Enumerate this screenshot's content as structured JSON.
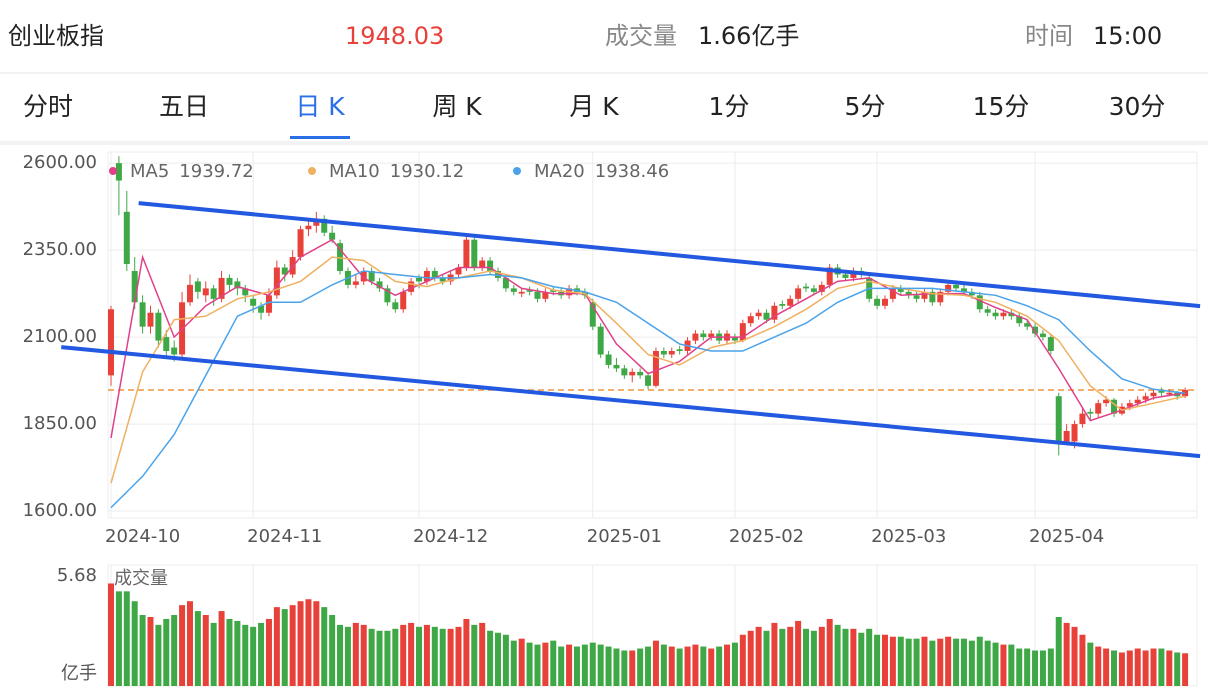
{
  "header": {
    "name": "创业板指",
    "price": 1948.03,
    "volume_label": "成交量",
    "volume_value": "1.66亿手",
    "time_label": "时间",
    "time": "15:00"
  },
  "tabs": [
    "分时",
    "五日",
    "日 K",
    "周 K",
    "月 K",
    "1分",
    "5分",
    "15分",
    "30分"
  ],
  "active_tab": 2,
  "chart_data": {
    "type": "candlestick",
    "up_color": "#e8413a",
    "down_color": "#3fa846",
    "ylim": [
      1580,
      2632
    ],
    "yticks": [
      {
        "value": 2600,
        "label": "2600.00"
      },
      {
        "value": 2350,
        "label": "2350.00"
      },
      {
        "value": 2100,
        "label": "2100.00"
      },
      {
        "value": 1850,
        "label": "1850.00"
      },
      {
        "value": 1600,
        "label": "1600.00"
      }
    ],
    "xlim": [
      -0.2,
      137.2
    ],
    "xticks": [
      {
        "value": 0,
        "label": "2024-10"
      },
      {
        "value": 18,
        "label": "2024-11"
      },
      {
        "value": 39,
        "label": "2024-12"
      },
      {
        "value": 61,
        "label": "2025-01"
      },
      {
        "value": 79,
        "label": "2025-02"
      },
      {
        "value": 97,
        "label": "2025-03"
      },
      {
        "value": 117,
        "label": "2025-04"
      }
    ],
    "grid": true,
    "candles": [
      [
        1990,
        2190,
        1960,
        2180
      ],
      [
        2600,
        2620,
        2450,
        2550
      ],
      [
        2460,
        2520,
        2290,
        2310
      ],
      [
        2290,
        2330,
        2180,
        2200
      ],
      [
        2200,
        2220,
        2110,
        2130
      ],
      [
        2130,
        2190,
        2110,
        2170
      ],
      [
        2170,
        2180,
        2070,
        2090
      ],
      [
        2100,
        2120,
        2040,
        2060
      ],
      [
        2070,
        2090,
        2030,
        2050
      ],
      [
        2050,
        2230,
        2040,
        2200
      ],
      [
        2200,
        2280,
        2190,
        2250
      ],
      [
        2260,
        2270,
        2210,
        2230
      ],
      [
        2220,
        2260,
        2200,
        2240
      ],
      [
        2240,
        2250,
        2190,
        2210
      ],
      [
        2210,
        2290,
        2200,
        2270
      ],
      [
        2270,
        2280,
        2230,
        2250
      ],
      [
        2260,
        2270,
        2220,
        2240
      ],
      [
        2240,
        2250,
        2200,
        2220
      ],
      [
        2210,
        2220,
        2170,
        2190
      ],
      [
        2190,
        2200,
        2150,
        2170
      ],
      [
        2170,
        2240,
        2160,
        2220
      ],
      [
        2220,
        2320,
        2210,
        2300
      ],
      [
        2300,
        2310,
        2260,
        2280
      ],
      [
        2280,
        2350,
        2270,
        2330
      ],
      [
        2330,
        2420,
        2320,
        2410
      ],
      [
        2410,
        2440,
        2390,
        2420
      ],
      [
        2420,
        2460,
        2400,
        2440
      ],
      [
        2440,
        2450,
        2390,
        2400
      ],
      [
        2400,
        2420,
        2370,
        2380
      ],
      [
        2370,
        2380,
        2280,
        2290
      ],
      [
        2290,
        2300,
        2240,
        2250
      ],
      [
        2250,
        2280,
        2240,
        2260
      ],
      [
        2260,
        2300,
        2250,
        2290
      ],
      [
        2290,
        2300,
        2250,
        2260
      ],
      [
        2260,
        2270,
        2230,
        2240
      ],
      [
        2240,
        2250,
        2190,
        2200
      ],
      [
        2200,
        2210,
        2170,
        2180
      ],
      [
        2180,
        2240,
        2170,
        2230
      ],
      [
        2230,
        2270,
        2220,
        2260
      ],
      [
        2270,
        2280,
        2240,
        2260
      ],
      [
        2260,
        2300,
        2250,
        2290
      ],
      [
        2290,
        2300,
        2260,
        2270
      ],
      [
        2270,
        2280,
        2250,
        2260
      ],
      [
        2260,
        2290,
        2250,
        2280
      ],
      [
        2280,
        2310,
        2270,
        2300
      ],
      [
        2300,
        2390,
        2290,
        2380
      ],
      [
        2380,
        2390,
        2290,
        2300
      ],
      [
        2300,
        2330,
        2290,
        2320
      ],
      [
        2320,
        2330,
        2280,
        2290
      ],
      [
        2290,
        2300,
        2260,
        2270
      ],
      [
        2270,
        2280,
        2230,
        2240
      ],
      [
        2240,
        2250,
        2220,
        2230
      ],
      [
        2225,
        2240,
        2215,
        2230
      ],
      [
        2235,
        2245,
        2220,
        2230
      ],
      [
        2230,
        2240,
        2200,
        2210
      ],
      [
        2210,
        2240,
        2200,
        2230
      ],
      [
        2235,
        2245,
        2220,
        2230
      ],
      [
        2230,
        2240,
        2210,
        2220
      ],
      [
        2220,
        2250,
        2210,
        2240
      ],
      [
        2240,
        2250,
        2220,
        2230
      ],
      [
        2230,
        2240,
        2210,
        2220
      ],
      [
        2200,
        2210,
        2120,
        2130
      ],
      [
        2130,
        2140,
        2040,
        2050
      ],
      [
        2050,
        2060,
        2010,
        2020
      ],
      [
        2020,
        2040,
        2000,
        2010
      ],
      [
        2010,
        2020,
        1980,
        1990
      ],
      [
        1990,
        2010,
        1970,
        2000
      ],
      [
        2000,
        2010,
        1980,
        1990
      ],
      [
        1990,
        2000,
        1950,
        1960
      ],
      [
        1960,
        2070,
        1955,
        2060
      ],
      [
        2060,
        2070,
        2040,
        2050
      ],
      [
        2050,
        2070,
        2040,
        2060
      ],
      [
        2065,
        2075,
        2050,
        2060
      ],
      [
        2060,
        2100,
        2050,
        2090
      ],
      [
        2090,
        2120,
        2080,
        2110
      ],
      [
        2110,
        2120,
        2090,
        2100
      ],
      [
        2100,
        2120,
        2090,
        2110
      ],
      [
        2110,
        2120,
        2080,
        2090
      ],
      [
        2090,
        2120,
        2080,
        2110
      ],
      [
        2100,
        2110,
        2080,
        2090
      ],
      [
        2090,
        2150,
        2085,
        2140
      ],
      [
        2140,
        2170,
        2130,
        2160
      ],
      [
        2160,
        2180,
        2150,
        2170
      ],
      [
        2170,
        2180,
        2140,
        2150
      ],
      [
        2150,
        2200,
        2140,
        2190
      ],
      [
        2195,
        2205,
        2180,
        2190
      ],
      [
        2190,
        2220,
        2180,
        2210
      ],
      [
        2210,
        2250,
        2200,
        2240
      ],
      [
        2245,
        2255,
        2230,
        2240
      ],
      [
        2240,
        2250,
        2220,
        2230
      ],
      [
        2230,
        2260,
        2220,
        2250
      ],
      [
        2250,
        2310,
        2240,
        2300
      ],
      [
        2300,
        2310,
        2270,
        2280
      ],
      [
        2280,
        2290,
        2260,
        2270
      ],
      [
        2270,
        2300,
        2260,
        2290
      ],
      [
        2290,
        2300,
        2270,
        2280
      ],
      [
        2270,
        2280,
        2200,
        2210
      ],
      [
        2210,
        2220,
        2180,
        2190
      ],
      [
        2190,
        2220,
        2180,
        2210
      ],
      [
        2210,
        2250,
        2200,
        2240
      ],
      [
        2240,
        2250,
        2220,
        2230
      ],
      [
        2230,
        2240,
        2210,
        2220
      ],
      [
        2220,
        2230,
        2200,
        2210
      ],
      [
        2210,
        2240,
        2200,
        2230
      ],
      [
        2230,
        2240,
        2190,
        2200
      ],
      [
        2200,
        2240,
        2190,
        2230
      ],
      [
        2230,
        2260,
        2220,
        2250
      ],
      [
        2250,
        2260,
        2230,
        2240
      ],
      [
        2240,
        2250,
        2220,
        2230
      ],
      [
        2230,
        2240,
        2210,
        2220
      ],
      [
        2220,
        2230,
        2170,
        2180
      ],
      [
        2180,
        2190,
        2160,
        2170
      ],
      [
        2170,
        2180,
        2150,
        2160
      ],
      [
        2160,
        2180,
        2150,
        2170
      ],
      [
        2170,
        2180,
        2150,
        2160
      ],
      [
        2160,
        2170,
        2130,
        2140
      ],
      [
        2140,
        2150,
        2120,
        2130
      ],
      [
        2130,
        2140,
        2100,
        2110
      ],
      [
        2110,
        2120,
        2090,
        2100
      ],
      [
        2100,
        2110,
        2050,
        2060
      ],
      [
        1930,
        1940,
        1760,
        1800
      ],
      [
        1800,
        1850,
        1790,
        1830
      ],
      [
        1800,
        1860,
        1780,
        1850
      ],
      [
        1850,
        1900,
        1840,
        1880
      ],
      [
        1885,
        1895,
        1860,
        1880
      ],
      [
        1880,
        1920,
        1870,
        1910
      ],
      [
        1910,
        1930,
        1900,
        1920
      ],
      [
        1920,
        1925,
        1870,
        1880
      ],
      [
        1880,
        1910,
        1875,
        1900
      ],
      [
        1900,
        1920,
        1890,
        1910
      ],
      [
        1910,
        1930,
        1900,
        1920
      ],
      [
        1920,
        1940,
        1910,
        1930
      ],
      [
        1930,
        1950,
        1920,
        1940
      ],
      [
        1945,
        1955,
        1930,
        1940
      ],
      [
        1935,
        1950,
        1930,
        1940
      ],
      [
        1940,
        1945,
        1920,
        1930
      ],
      [
        1930,
        1955,
        1925,
        1948.03
      ]
    ],
    "series": [
      {
        "name": "MA5",
        "color": "#e0408a",
        "x": [
          0,
          4,
          8,
          12,
          16,
          20,
          24,
          28,
          32,
          36,
          40,
          44,
          48,
          52,
          56,
          60,
          64,
          68,
          72,
          76,
          80,
          84,
          88,
          92,
          96,
          100,
          104,
          108,
          112,
          116,
          120,
          124,
          128,
          132,
          136
        ],
        "values": [
          1810,
          2330,
          2100,
          2190,
          2245,
          2220,
          2330,
          2380,
          2270,
          2220,
          2260,
          2300,
          2300,
          2240,
          2225,
          2225,
          2080,
          1995,
          2030,
          2100,
          2100,
          2160,
          2210,
          2260,
          2270,
          2220,
          2225,
          2225,
          2185,
          2150,
          2010,
          1860,
          1890,
          1925,
          1939.72
        ]
      },
      {
        "name": "MA10",
        "color": "#f0b060",
        "x": [
          0,
          4,
          8,
          12,
          16,
          20,
          24,
          28,
          32,
          36,
          40,
          44,
          48,
          52,
          56,
          60,
          64,
          68,
          72,
          76,
          80,
          84,
          88,
          92,
          96,
          100,
          104,
          108,
          112,
          116,
          120,
          124,
          128,
          132,
          136
        ],
        "values": [
          1680,
          2000,
          2150,
          2160,
          2210,
          2230,
          2260,
          2330,
          2320,
          2260,
          2245,
          2270,
          2290,
          2270,
          2235,
          2225,
          2140,
          2050,
          2020,
          2070,
          2090,
          2130,
          2180,
          2240,
          2260,
          2240,
          2225,
          2220,
          2200,
          2160,
          2090,
          1960,
          1890,
          1910,
          1930.12
        ]
      },
      {
        "name": "MA20",
        "color": "#4aa3ea",
        "x": [
          0,
          4,
          8,
          12,
          16,
          20,
          24,
          28,
          32,
          36,
          40,
          44,
          48,
          52,
          56,
          60,
          64,
          68,
          72,
          76,
          80,
          84,
          88,
          92,
          96,
          100,
          104,
          108,
          112,
          116,
          120,
          124,
          128,
          132,
          136
        ],
        "values": [
          1610,
          1700,
          1820,
          1990,
          2160,
          2200,
          2200,
          2250,
          2290,
          2280,
          2270,
          2270,
          2280,
          2270,
          2245,
          2230,
          2200,
          2140,
          2080,
          2060,
          2060,
          2100,
          2140,
          2200,
          2240,
          2240,
          2240,
          2230,
          2220,
          2190,
          2150,
          2060,
          1980,
          1950,
          1938.46
        ]
      }
    ],
    "trend_lines": [
      {
        "color": "#2358e0",
        "x": [
          3.5,
          137.9
        ],
        "y": [
          2485,
          2189
        ]
      },
      {
        "color": "#2358e0",
        "x": [
          -6.3,
          137.9
        ],
        "y": [
          2071,
          1758
        ]
      }
    ],
    "price_line": {
      "value": 1948.03,
      "color": "#f0953a"
    },
    "volume": {
      "title": "成交量",
      "unit": "亿手",
      "ylim": [
        0,
        5.68
      ],
      "yticks": [
        5.68
      ],
      "values": [
        5.2,
        4.8,
        4.8,
        4.3,
        3.6,
        3.5,
        3.1,
        3.4,
        3.6,
        4.1,
        4.3,
        3.8,
        3.6,
        3.2,
        3.8,
        3.4,
        3.3,
        3.1,
        3.0,
        3.2,
        3.4,
        4.0,
        3.9,
        4.1,
        4.3,
        4.4,
        4.3,
        4.0,
        3.6,
        3.1,
        3.0,
        3.2,
        3.1,
        2.9,
        2.8,
        2.8,
        2.9,
        3.1,
        3.2,
        3.0,
        3.1,
        3.0,
        2.9,
        2.9,
        3.0,
        3.4,
        3.1,
        3.2,
        2.8,
        2.7,
        2.6,
        2.3,
        2.4,
        2.2,
        2.1,
        2.2,
        2.3,
        2.0,
        2.1,
        2.0,
        2.1,
        2.2,
        2.1,
        2.0,
        1.9,
        1.8,
        1.8,
        1.9,
        2.0,
        2.3,
        2.1,
        2.0,
        1.9,
        2.0,
        2.1,
        2.0,
        1.9,
        2.0,
        2.1,
        2.2,
        2.6,
        2.8,
        3.0,
        2.8,
        3.2,
        2.9,
        3.0,
        3.3,
        2.9,
        2.8,
        3.0,
        3.4,
        3.1,
        2.9,
        2.9,
        2.7,
        2.9,
        2.6,
        2.6,
        2.5,
        2.5,
        2.4,
        2.4,
        2.5,
        2.3,
        2.4,
        2.5,
        2.4,
        2.4,
        2.3,
        2.5,
        2.3,
        2.2,
        2.1,
        2.1,
        1.9,
        1.9,
        1.8,
        1.8,
        1.9,
        3.5,
        3.2,
        3.0,
        2.6,
        2.2,
        2.0,
        1.9,
        1.8,
        1.7,
        1.8,
        1.9,
        1.8,
        1.9,
        1.9,
        1.8,
        1.7,
        1.66
      ]
    }
  }
}
